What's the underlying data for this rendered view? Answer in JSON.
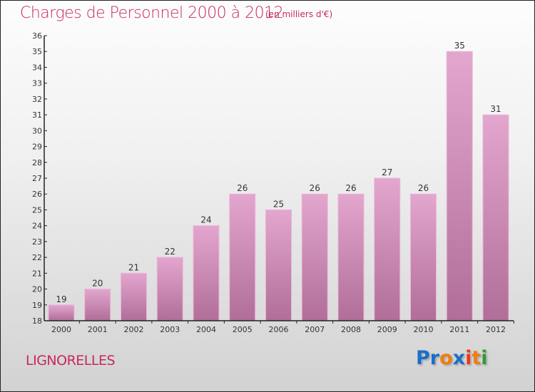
{
  "header": {
    "title": "Charges de Personnel 2000 à 2012",
    "subtitle": "(en milliers d'€)"
  },
  "footer": {
    "place": "LIGNORELLES",
    "logo": [
      "P",
      "r",
      "o",
      "x",
      "i",
      "t",
      "i"
    ],
    "logo_colors": [
      "#1a6fc9",
      "#1a6fc9",
      "#f07d10",
      "#1a6fc9",
      "#e83b1a",
      "#f07d10",
      "#2e9a3a"
    ]
  },
  "chart_data": {
    "type": "bar",
    "title": "Charges de Personnel 2000 à 2012",
    "ylabel": "(en milliers d'€)",
    "xlabel": "",
    "categories": [
      "2000",
      "2001",
      "2002",
      "2003",
      "2004",
      "2005",
      "2006",
      "2007",
      "2008",
      "2009",
      "2010",
      "2011",
      "2012"
    ],
    "values": [
      19,
      20,
      21,
      22,
      24,
      26,
      25,
      26,
      26,
      27,
      26,
      35,
      31
    ],
    "ylim": [
      18,
      36
    ],
    "yticks": [
      18,
      19,
      20,
      21,
      22,
      23,
      24,
      25,
      26,
      27,
      28,
      29,
      30,
      31,
      32,
      33,
      34,
      35,
      36
    ],
    "bar_color": "#d99cc4"
  }
}
